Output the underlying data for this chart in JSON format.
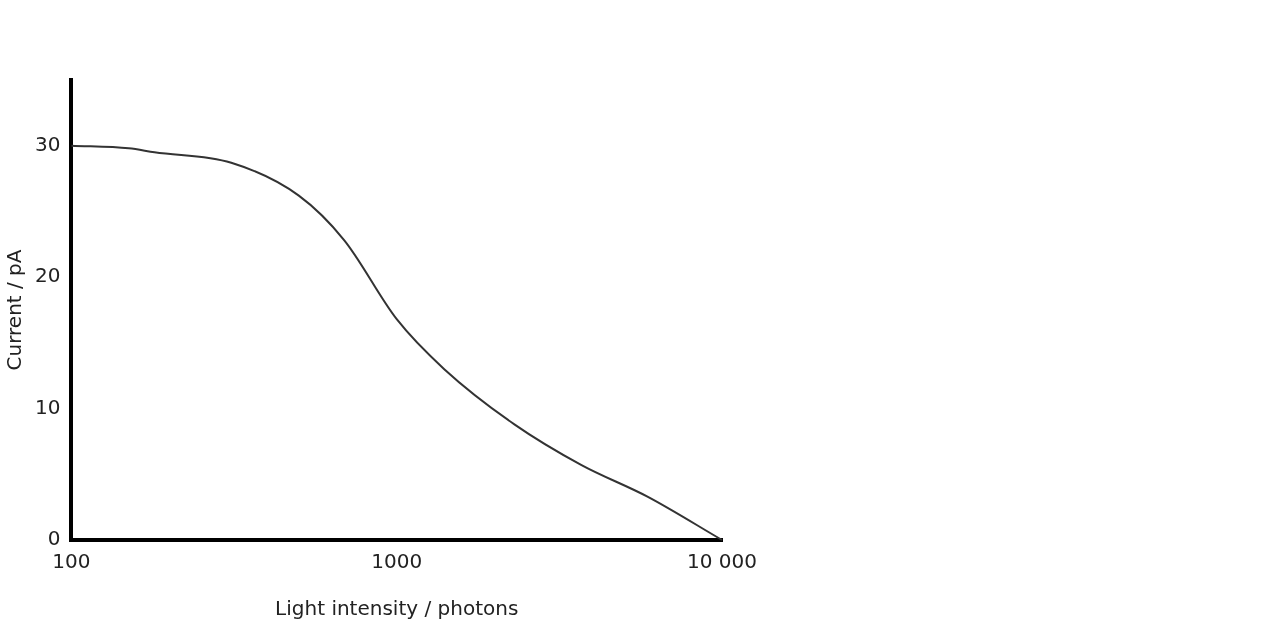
{
  "chart_data": {
    "type": "line",
    "xlabel": "Light intensity / photons",
    "ylabel": "Current / pA",
    "x": [
      100,
      150,
      180,
      310,
      500,
      690,
      1000,
      1400,
      2300,
      3700,
      5900,
      10000
    ],
    "series": [
      {
        "color": "#333333",
        "values": [
          30,
          29.8,
          29.5,
          28.7,
          26.2,
          22.8,
          16.8,
          13,
          8.8,
          5.7,
          3.3,
          0
        ]
      }
    ],
    "log": "x",
    "xlim": [
      100,
      10000
    ],
    "xticks": [
      100,
      1000,
      {
        "value": 10000,
        "label": "10 000"
      }
    ],
    "ylim": [
      0,
      35
    ],
    "yticks": [
      0,
      10,
      20,
      30
    ],
    "grid": false,
    "legend": false,
    "marker": "none",
    "line_style": "solid"
  }
}
